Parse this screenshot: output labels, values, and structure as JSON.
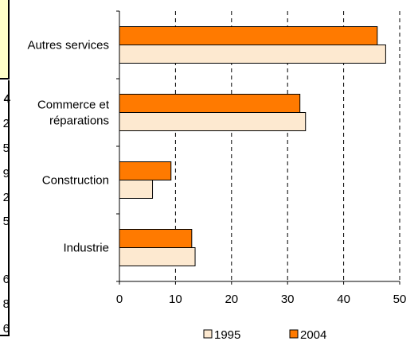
{
  "chart_data": {
    "type": "bar",
    "orientation": "horizontal",
    "categories": [
      "Autres services",
      "Commerce et réparations",
      "Construction",
      "Industrie"
    ],
    "category_lines": [
      [
        "Autres services"
      ],
      [
        "Commerce et",
        "réparations"
      ],
      [
        "Construction"
      ],
      [
        "Industrie"
      ]
    ],
    "series": [
      {
        "name": "1995",
        "values": [
          47.5,
          33.2,
          5.9,
          13.5
        ],
        "color": "#fde9d0"
      },
      {
        "name": "2004",
        "values": [
          46.0,
          32.2,
          9.2,
          12.9
        ],
        "color": "#ff7a00"
      }
    ],
    "xlim": [
      0,
      50
    ],
    "xticks": [
      "0",
      "10",
      "20",
      "30",
      "40",
      "50"
    ],
    "grid": "vertical dashed",
    "legend_position": "bottom"
  },
  "left_fragment": {
    "background": "#ffffc8",
    "edge_characters": [
      "4",
      "2",
      "5",
      "9",
      "2",
      "5",
      "6",
      "8",
      "6"
    ]
  }
}
